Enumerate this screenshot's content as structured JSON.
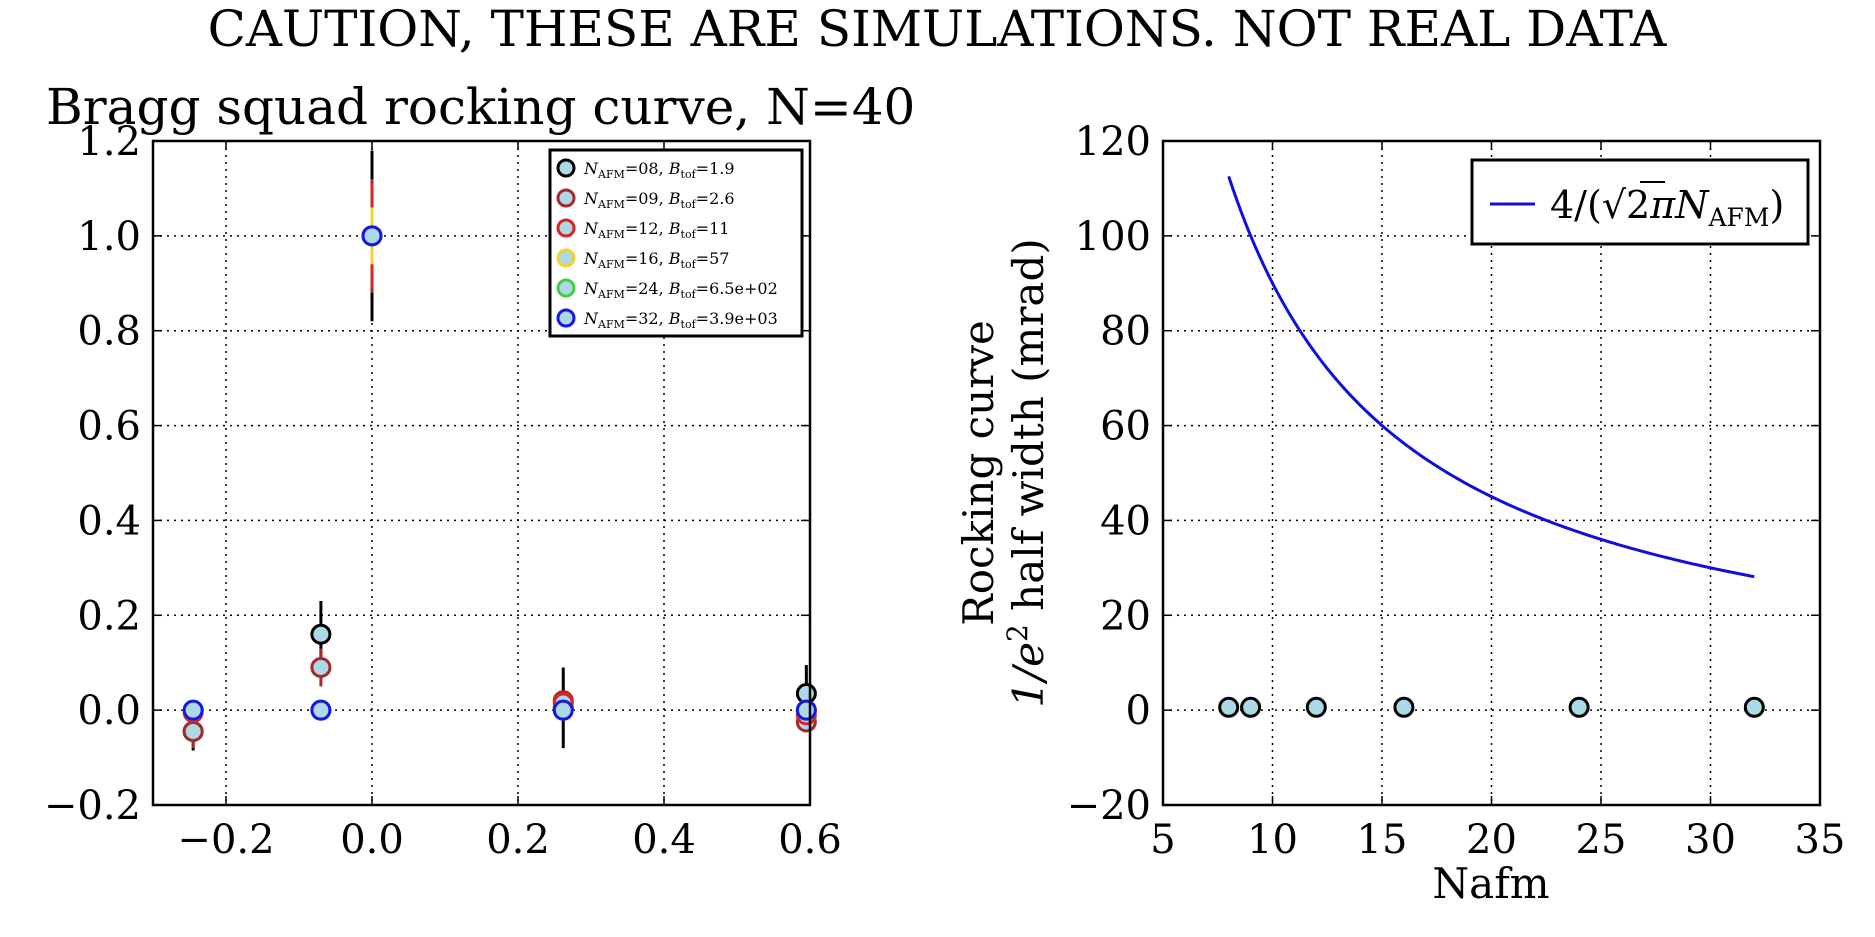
{
  "suptitle": "CAUTION, THESE ARE SIMULATIONS. NOT REAL DATA",
  "chart_data": [
    {
      "type": "scatter",
      "title": "Bragg squad rocking curve, N=40",
      "xlabel": "",
      "ylabel": "",
      "xlim": [
        -0.3,
        0.6
      ],
      "ylim": [
        -0.2,
        1.2
      ],
      "xticks": [
        "−0.2",
        "0.0",
        "0.2",
        "0.4",
        "0.6"
      ],
      "xtick_values": [
        -0.2,
        0.0,
        0.2,
        0.4,
        0.6
      ],
      "yticks": [
        "−0.2",
        "0.0",
        "0.2",
        "0.4",
        "0.6",
        "0.8",
        "1.0",
        "1.2"
      ],
      "ytick_values": [
        -0.2,
        0.0,
        0.2,
        0.4,
        0.6,
        0.8,
        1.0,
        1.2
      ],
      "grid": true,
      "grid_style": "dotted",
      "legend_position": "top-right",
      "series": [
        {
          "name": "N_AFM=08, B_tof=1.9",
          "legend_label": "=08, ",
          "legend_value": "=1.9",
          "face": "#add8e6",
          "edge": "#000000",
          "points": [
            [
              -0.245,
              -0.045,
              0.04
            ],
            [
              -0.07,
              0.16,
              0.07
            ],
            [
              0.0,
              1.0,
              0.18
            ],
            [
              0.262,
              0.005,
              0.085
            ],
            [
              0.595,
              0.035,
              0.06
            ]
          ]
        },
        {
          "name": "N_AFM=09, B_tof=2.6",
          "legend_label": "=09, ",
          "legend_value": "=2.6",
          "face": "#add8e6",
          "edge": "#a52a2a",
          "points": [
            [
              -0.245,
              -0.045,
              0.035
            ],
            [
              -0.07,
              0.09,
              0.04
            ],
            [
              0.0,
              1.0,
              0.12
            ],
            [
              0.262,
              0.02,
              0.02
            ],
            [
              0.595,
              -0.025,
              0.02
            ]
          ]
        },
        {
          "name": "N_AFM=12, B_tof=11",
          "legend_label": "=12, ",
          "legend_value": "=11",
          "face": "#add8e6",
          "edge": "#dd2222",
          "points": [
            [
              -0.245,
              -0.005,
              0.01
            ],
            [
              -0.07,
              0.0,
              0.01
            ],
            [
              0.0,
              1.0,
              0.11
            ],
            [
              0.262,
              0.015,
              0.015
            ],
            [
              0.595,
              -0.01,
              0.01
            ]
          ]
        },
        {
          "name": "N_AFM=16, B_tof=57",
          "legend_label": "=16, ",
          "legend_value": "=57",
          "face": "#add8e6",
          "edge": "#f2d233",
          "points": [
            [
              -0.245,
              0.0,
              0.005
            ],
            [
              -0.07,
              0.0,
              0.005
            ],
            [
              0.0,
              1.0,
              0.06
            ],
            [
              0.262,
              0.0,
              0.005
            ],
            [
              0.595,
              0.0,
              0.005
            ]
          ]
        },
        {
          "name": "N_AFM=24, B_tof=6.5e+02",
          "legend_label": "=24, ",
          "legend_value": "=6.5e+02",
          "face": "#add8e6",
          "edge": "#44cc44",
          "points": [
            [
              -0.245,
              0.0,
              0.0
            ],
            [
              -0.07,
              0.0,
              0.0
            ],
            [
              0.0,
              1.0,
              0.02
            ],
            [
              0.262,
              0.0,
              0.0
            ],
            [
              0.595,
              0.0,
              0.0
            ]
          ]
        },
        {
          "name": "N_AFM=32, B_tof=3.9e+03",
          "legend_label": "=32, ",
          "legend_value": "=3.9e+03",
          "face": "#add8e6",
          "edge": "#1515ee",
          "points": [
            [
              -0.245,
              0.0,
              0.0
            ],
            [
              -0.07,
              0.0,
              0.0
            ],
            [
              0.0,
              1.0,
              0.0
            ],
            [
              0.262,
              0.0,
              0.0
            ],
            [
              0.595,
              0.0,
              0.0
            ]
          ]
        }
      ]
    },
    {
      "type": "line",
      "title": "",
      "xlabel": "Nafm",
      "ylabel_line1": "Rocking curve",
      "ylabel_line2_post": " half width (mrad)",
      "xlim": [
        5,
        35
      ],
      "ylim": [
        -20,
        120
      ],
      "xticks": [
        "5",
        "10",
        "15",
        "20",
        "25",
        "30",
        "35"
      ],
      "xtick_values": [
        5,
        10,
        15,
        20,
        25,
        30,
        35
      ],
      "yticks": [
        "−20",
        "0",
        "20",
        "40",
        "60",
        "80",
        "100",
        "120"
      ],
      "ytick_values": [
        -20,
        0,
        20,
        40,
        60,
        80,
        100,
        120
      ],
      "grid": true,
      "grid_style": "dotted",
      "legend_position": "top-right",
      "series": [
        {
          "name": "4/(√2πN_AFM)",
          "kind": "line",
          "color": "#1010dd",
          "x_range": [
            8,
            32
          ],
          "formula": "4000/(sqrt(2)*pi*N)"
        },
        {
          "name": "",
          "kind": "markers",
          "face": "#add8e6",
          "edge": "#000000",
          "x": [
            8,
            9,
            12,
            16,
            24,
            32
          ],
          "y": [
            0.6,
            0.6,
            0.6,
            0.6,
            0.6,
            0.6
          ]
        }
      ],
      "legend_entry": {
        "prefix": "4/(",
        "sqrt_arg": "2",
        "pi": "π",
        "N": "N",
        "sub": "AFM",
        "suffix": ")"
      }
    }
  ]
}
